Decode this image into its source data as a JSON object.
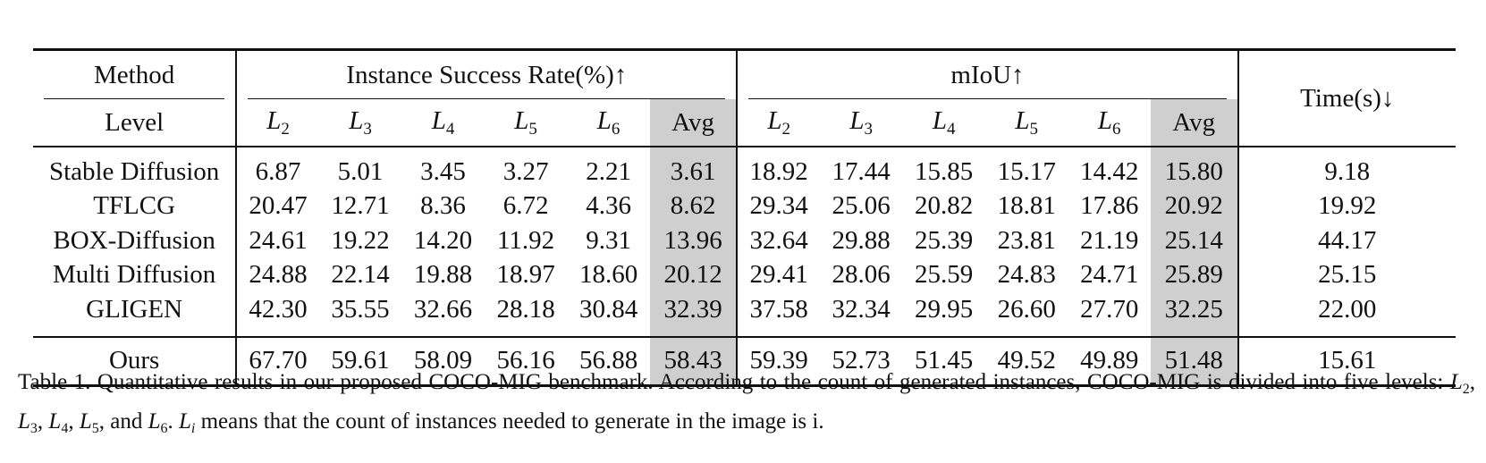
{
  "table": {
    "headers": {
      "method": "Method",
      "level": "Level",
      "isr_group": "Instance Success Rate(%)↑",
      "miou_group": "mIoU↑",
      "time": "Time(s)↓",
      "levels": [
        "2",
        "3",
        "4",
        "5",
        "6"
      ],
      "level_prefix": "L",
      "avg": "Avg"
    },
    "rows": [
      {
        "method": "Stable Diffusion",
        "isr": [
          "6.87",
          "5.01",
          "3.45",
          "3.27",
          "2.21",
          "3.61"
        ],
        "miou": [
          "18.92",
          "17.44",
          "15.85",
          "15.17",
          "14.42",
          "15.80"
        ],
        "time": "9.18"
      },
      {
        "method": "TFLCG",
        "isr": [
          "20.47",
          "12.71",
          "8.36",
          "6.72",
          "4.36",
          "8.62"
        ],
        "miou": [
          "29.34",
          "25.06",
          "20.82",
          "18.81",
          "17.86",
          "20.92"
        ],
        "time": "19.92"
      },
      {
        "method": "BOX-Diffusion",
        "isr": [
          "24.61",
          "19.22",
          "14.20",
          "11.92",
          "9.31",
          "13.96"
        ],
        "miou": [
          "32.64",
          "29.88",
          "25.39",
          "23.81",
          "21.19",
          "25.14"
        ],
        "time": "44.17"
      },
      {
        "method": "Multi Diffusion",
        "isr": [
          "24.88",
          "22.14",
          "19.88",
          "18.97",
          "18.60",
          "20.12"
        ],
        "miou": [
          "29.41",
          "28.06",
          "25.59",
          "24.83",
          "24.71",
          "25.89"
        ],
        "time": "25.15"
      },
      {
        "method": "GLIGEN",
        "isr": [
          "42.30",
          "35.55",
          "32.66",
          "28.18",
          "30.84",
          "32.39"
        ],
        "miou": [
          "37.58",
          "32.34",
          "29.95",
          "26.60",
          "27.70",
          "32.25"
        ],
        "time": "22.00"
      }
    ],
    "ours": {
      "method": "Ours",
      "isr": [
        "67.70",
        "59.61",
        "58.09",
        "56.16",
        "56.88",
        "58.43"
      ],
      "miou": [
        "59.39",
        "52.73",
        "51.45",
        "49.52",
        "49.89",
        "51.48"
      ],
      "time": "15.61"
    },
    "avg_highlight_color": "#cfcfcf"
  },
  "caption": {
    "label": "Table 1.",
    "text_a": "Quantitative results in our proposed COCO-MIG benchmark.  According to the count of generated instances, COCO-MIG is divided into five levels: ",
    "text_b": ", and ",
    "text_c": " means that the count of instances needed to generate in the image is i.",
    "sep": ", ",
    "level_prefix": "L",
    "levels": [
      "2",
      "3",
      "4",
      "5",
      "6"
    ],
    "end_punct": ".",
    "li_sub": "i"
  }
}
